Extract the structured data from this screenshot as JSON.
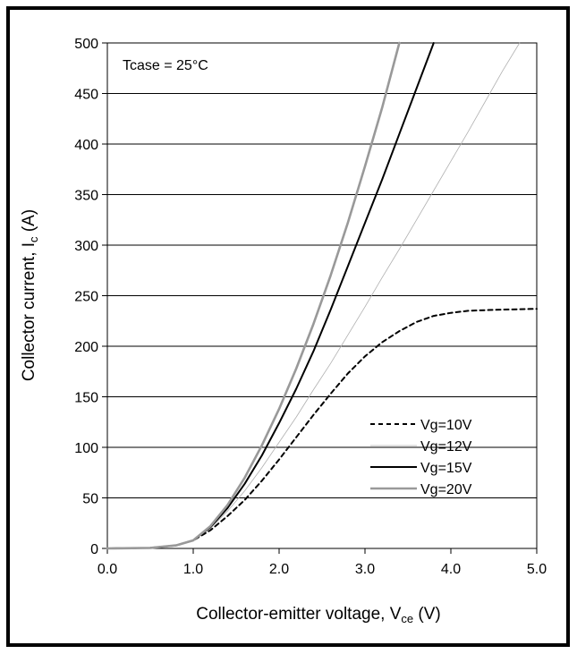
{
  "chart_data": {
    "type": "line",
    "xlabel": {
      "prefix": "Collector-emitter voltage, V",
      "sub": "ce",
      "suffix": " (V)"
    },
    "ylabel": {
      "prefix": "Collector current, I",
      "sub": "c",
      "suffix": " (A)"
    },
    "xlim": [
      0,
      5
    ],
    "ylim": [
      0,
      500
    ],
    "x_ticks": [
      "0.0",
      "1.0",
      "2.0",
      "3.0",
      "4.0",
      "5.0"
    ],
    "y_ticks": [
      "0",
      "50",
      "100",
      "150",
      "200",
      "250",
      "300",
      "350",
      "400",
      "450",
      "500"
    ],
    "grid": "y-major",
    "legend_position": "bottom-right",
    "annotation": "Tcase = 25°C",
    "series": [
      {
        "name": "Vg=10V",
        "color": "#000000",
        "style": "dashed",
        "points": [
          [
            0,
            0
          ],
          [
            0.5,
            0.5
          ],
          [
            0.8,
            3
          ],
          [
            1.0,
            8
          ],
          [
            1.2,
            18
          ],
          [
            1.4,
            32
          ],
          [
            1.6,
            48
          ],
          [
            1.8,
            67
          ],
          [
            2.0,
            88
          ],
          [
            2.2,
            110
          ],
          [
            2.4,
            132
          ],
          [
            2.6,
            153
          ],
          [
            2.8,
            173
          ],
          [
            3.0,
            190
          ],
          [
            3.2,
            204
          ],
          [
            3.4,
            215
          ],
          [
            3.6,
            224
          ],
          [
            3.8,
            230
          ],
          [
            4.0,
            233
          ],
          [
            4.2,
            235
          ],
          [
            4.5,
            236
          ],
          [
            5.0,
            237
          ]
        ]
      },
      {
        "name": "Vg=12V",
        "color": "#b0b0b0",
        "style": "solid-thin",
        "points": [
          [
            0,
            0
          ],
          [
            0.5,
            0.5
          ],
          [
            0.8,
            3
          ],
          [
            1.0,
            8
          ],
          [
            1.2,
            20
          ],
          [
            1.4,
            37
          ],
          [
            1.6,
            57
          ],
          [
            1.8,
            80
          ],
          [
            2.0,
            105
          ],
          [
            2.2,
            130
          ],
          [
            2.4,
            157
          ],
          [
            2.6,
            183
          ],
          [
            2.8,
            211
          ],
          [
            3.0,
            239
          ],
          [
            3.2,
            268
          ],
          [
            3.4,
            296
          ],
          [
            3.6,
            325
          ],
          [
            3.8,
            354
          ],
          [
            4.0,
            383
          ],
          [
            4.2,
            412
          ],
          [
            4.4,
            442
          ],
          [
            4.6,
            472
          ],
          [
            4.8,
            500
          ]
        ]
      },
      {
        "name": "Vg=15V",
        "color": "#000000",
        "style": "solid",
        "points": [
          [
            0,
            0
          ],
          [
            0.5,
            0.5
          ],
          [
            0.8,
            3
          ],
          [
            1.0,
            8
          ],
          [
            1.2,
            21
          ],
          [
            1.4,
            40
          ],
          [
            1.6,
            64
          ],
          [
            1.8,
            92
          ],
          [
            2.0,
            124
          ],
          [
            2.2,
            158
          ],
          [
            2.4,
            195
          ],
          [
            2.6,
            236
          ],
          [
            2.8,
            279
          ],
          [
            3.0,
            322
          ],
          [
            3.2,
            365
          ],
          [
            3.4,
            410
          ],
          [
            3.6,
            455
          ],
          [
            3.8,
            500
          ]
        ]
      },
      {
        "name": "Vg=20V",
        "color": "#999999",
        "style": "solid-thick",
        "points": [
          [
            0,
            0
          ],
          [
            0.5,
            0.5
          ],
          [
            0.8,
            3
          ],
          [
            1.0,
            8
          ],
          [
            1.2,
            22
          ],
          [
            1.4,
            43
          ],
          [
            1.6,
            70
          ],
          [
            1.8,
            102
          ],
          [
            2.0,
            138
          ],
          [
            2.2,
            178
          ],
          [
            2.4,
            222
          ],
          [
            2.6,
            270
          ],
          [
            2.8,
            322
          ],
          [
            3.0,
            378
          ],
          [
            3.2,
            436
          ],
          [
            3.4,
            500
          ]
        ]
      }
    ]
  }
}
